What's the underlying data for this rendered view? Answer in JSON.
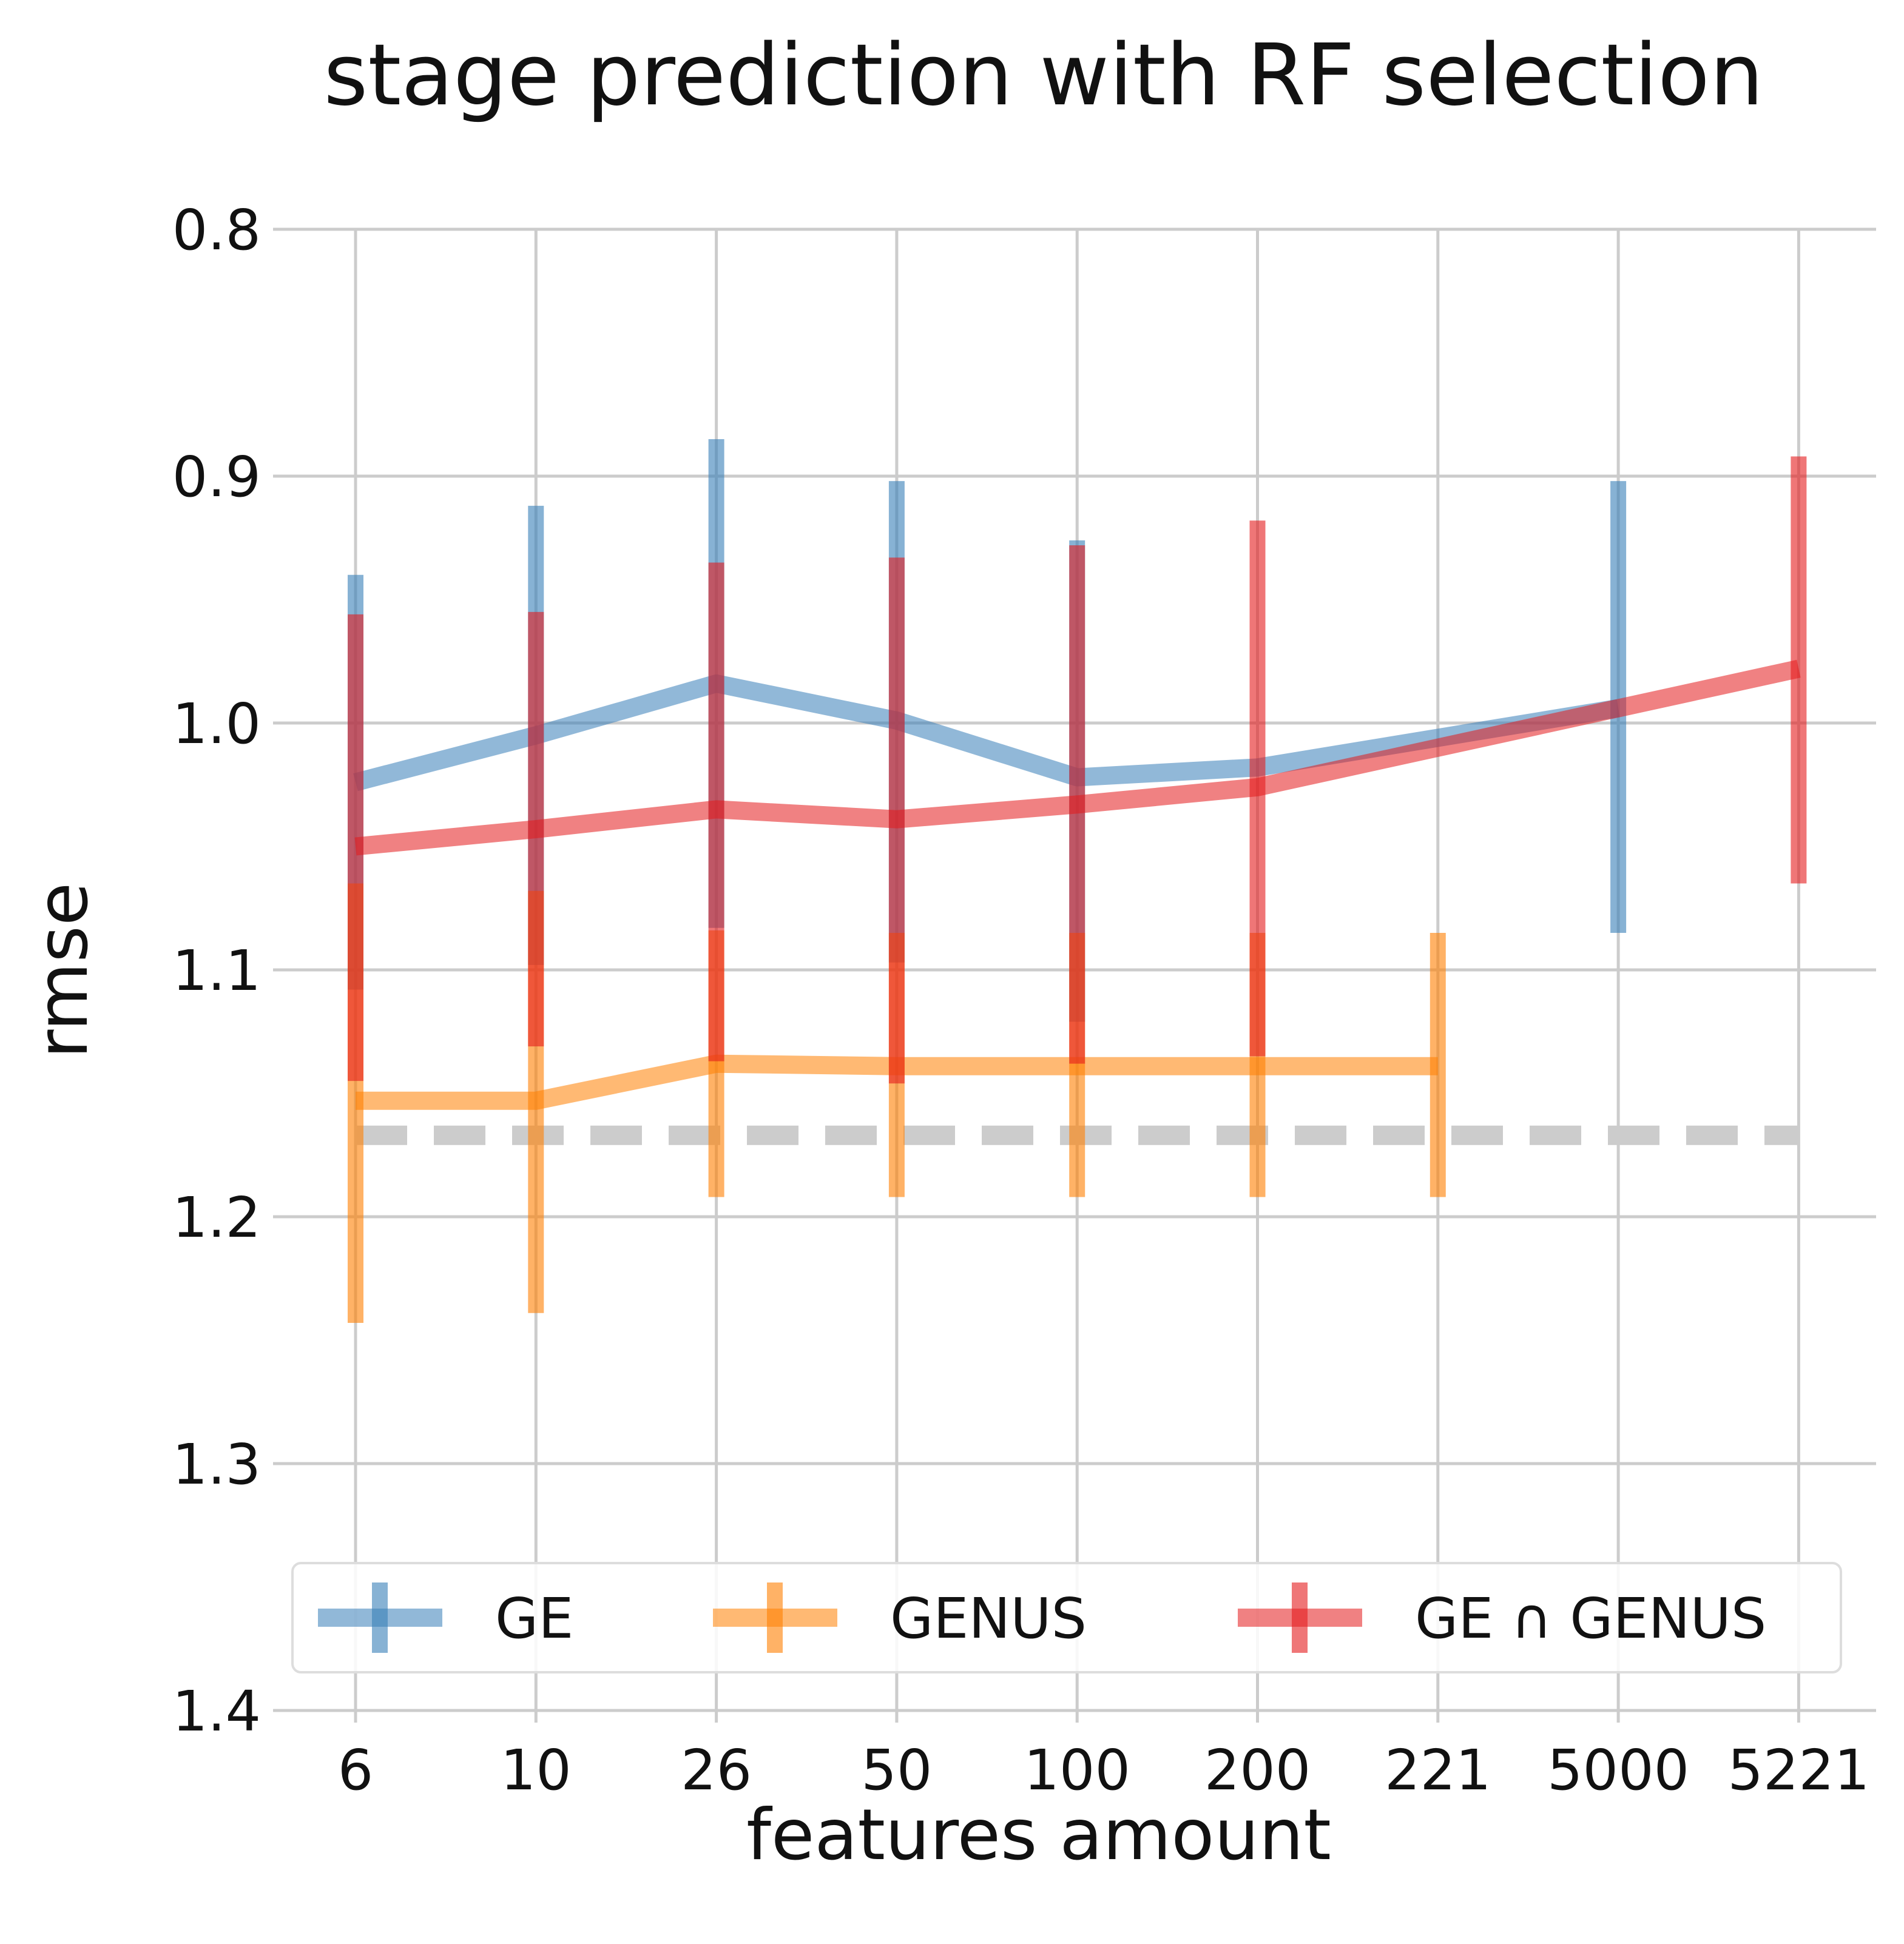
{
  "chart_data": {
    "type": "line",
    "title": "stage prediction with RF selection",
    "xlabel": "features amount",
    "ylabel": "rmse",
    "categories": [
      "6",
      "10",
      "26",
      "50",
      "100",
      "200",
      "221",
      "5000",
      "5221"
    ],
    "yticks": [
      "0.8",
      "0.9",
      "1.0",
      "1.1",
      "1.2",
      "1.3",
      "1.4"
    ],
    "ylim": [
      1.4,
      0.8
    ],
    "y_inverted": true,
    "grid": true,
    "legend_position": "bottom",
    "series": [
      {
        "name": "GE",
        "color": "#377eb8",
        "values": [
          1.024,
          1.005,
          0.984,
          0.999,
          1.022,
          1.018,
          null,
          0.994,
          null
        ],
        "err_low": [
          0.94,
          0.912,
          0.885,
          0.902,
          0.926,
          null,
          null,
          0.902,
          null
        ],
        "err_high": [
          1.108,
          1.098,
          1.083,
          1.097,
          1.121,
          null,
          null,
          1.085,
          null
        ]
      },
      {
        "name": "GENUS",
        "color": "#ff7f00",
        "values": [
          1.153,
          1.153,
          1.138,
          1.139,
          1.139,
          1.139,
          1.139,
          null,
          null
        ],
        "err_low": [
          1.065,
          1.068,
          1.084,
          1.085,
          1.085,
          1.085,
          1.085,
          null,
          null
        ],
        "err_high": [
          1.243,
          1.239,
          1.192,
          1.192,
          1.192,
          1.192,
          1.192,
          null,
          null
        ]
      },
      {
        "name": "GE ∩ GENUS",
        "color": "#e41a1c",
        "values": [
          1.05,
          1.043,
          1.035,
          1.039,
          1.033,
          1.026,
          null,
          null,
          0.978
        ],
        "err_low": [
          0.956,
          0.955,
          0.935,
          0.933,
          0.928,
          0.918,
          null,
          null,
          0.892
        ],
        "err_high": [
          1.145,
          1.131,
          1.137,
          1.146,
          1.138,
          1.135,
          null,
          null,
          1.065
        ]
      }
    ],
    "baseline": {
      "value": 1.167,
      "color": "#cccccc",
      "style": "dashed"
    }
  }
}
